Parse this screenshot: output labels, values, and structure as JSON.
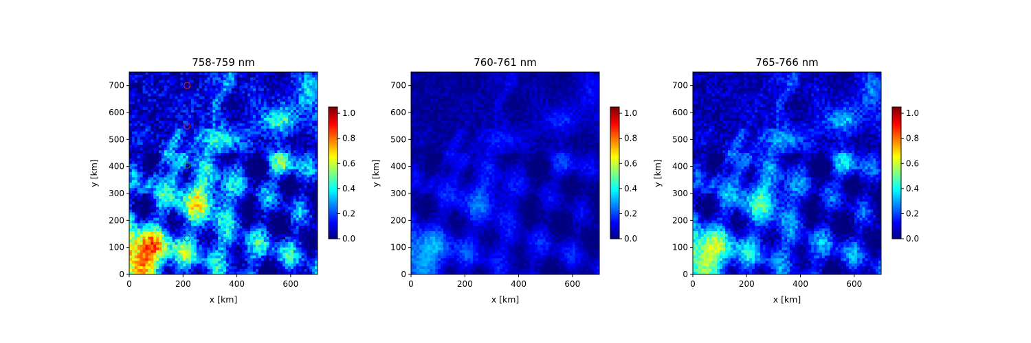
{
  "chart_data": [
    {
      "type": "heatmap",
      "title": "758-759 nm",
      "xlabel": "x [km]",
      "ylabel": "y [km]",
      "xlim": [
        0,
        700
      ],
      "ylim": [
        0,
        750
      ],
      "xticks": [
        0,
        200,
        400,
        600
      ],
      "yticks": [
        0,
        100,
        200,
        300,
        400,
        500,
        600,
        700
      ],
      "colormap": "jet",
      "colorbar": {
        "range": [
          0.0,
          1.05
        ],
        "ticks": [
          "0.0",
          "0.2",
          "0.4",
          "0.6",
          "0.8",
          "1.0"
        ]
      },
      "intensity_scale": 1.0,
      "markers": [
        {
          "x": 215,
          "y": 700,
          "color": "#d62728"
        },
        {
          "x": 215,
          "y": 550,
          "color": "#d62728"
        },
        {
          "x": 215,
          "y": 405,
          "color": "#2ca02c"
        },
        {
          "x": 215,
          "y": 135,
          "color": "#1f3a93"
        }
      ]
    },
    {
      "type": "heatmap",
      "title": "760-761 nm",
      "xlabel": "x [km]",
      "ylabel": "y [km]",
      "xlim": [
        0,
        700
      ],
      "ylim": [
        0,
        750
      ],
      "xticks": [
        0,
        200,
        400,
        600
      ],
      "yticks": [
        0,
        100,
        200,
        300,
        400,
        500,
        600,
        700
      ],
      "colormap": "jet",
      "colorbar": {
        "range": [
          0.0,
          1.05
        ],
        "ticks": [
          "0.0",
          "0.2",
          "0.4",
          "0.6",
          "0.8",
          "1.0"
        ]
      },
      "intensity_scale": 0.38,
      "markers": []
    },
    {
      "type": "heatmap",
      "title": "765-766 nm",
      "xlabel": "x [km]",
      "ylabel": "y [km]",
      "xlim": [
        0,
        700
      ],
      "ylim": [
        0,
        750
      ],
      "xticks": [
        0,
        200,
        400,
        600
      ],
      "yticks": [
        0,
        100,
        200,
        300,
        400,
        500,
        600,
        700
      ],
      "colormap": "jet",
      "colorbar": {
        "range": [
          0.0,
          1.05
        ],
        "ticks": [
          "0.0",
          "0.2",
          "0.4",
          "0.6",
          "0.8",
          "1.0"
        ]
      },
      "intensity_scale": 0.72,
      "markers": []
    }
  ]
}
